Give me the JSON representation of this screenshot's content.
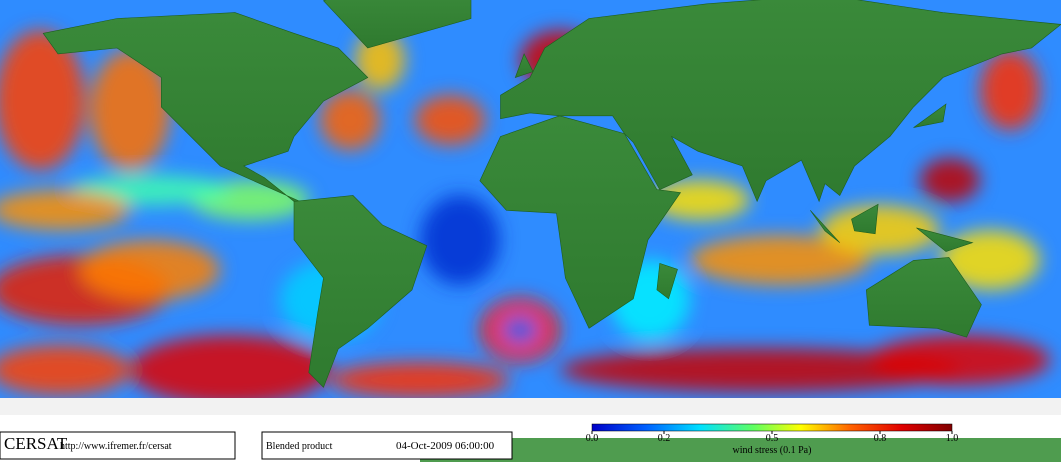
{
  "footer": {
    "logo": "CERSAT",
    "url": "http://www.ifremer.fr/cersat",
    "product": "Blended product",
    "date": "04-Oct-2009 06:00:00"
  },
  "colorbar": {
    "label": "wind stress (0.1 Pa)",
    "lim": [
      0,
      1
    ],
    "ticks": [
      {
        "value": 0,
        "label": "0.0"
      },
      0.2,
      0.5,
      0.8,
      {
        "value": 1,
        "label": "1.0"
      }
    ]
  }
}
